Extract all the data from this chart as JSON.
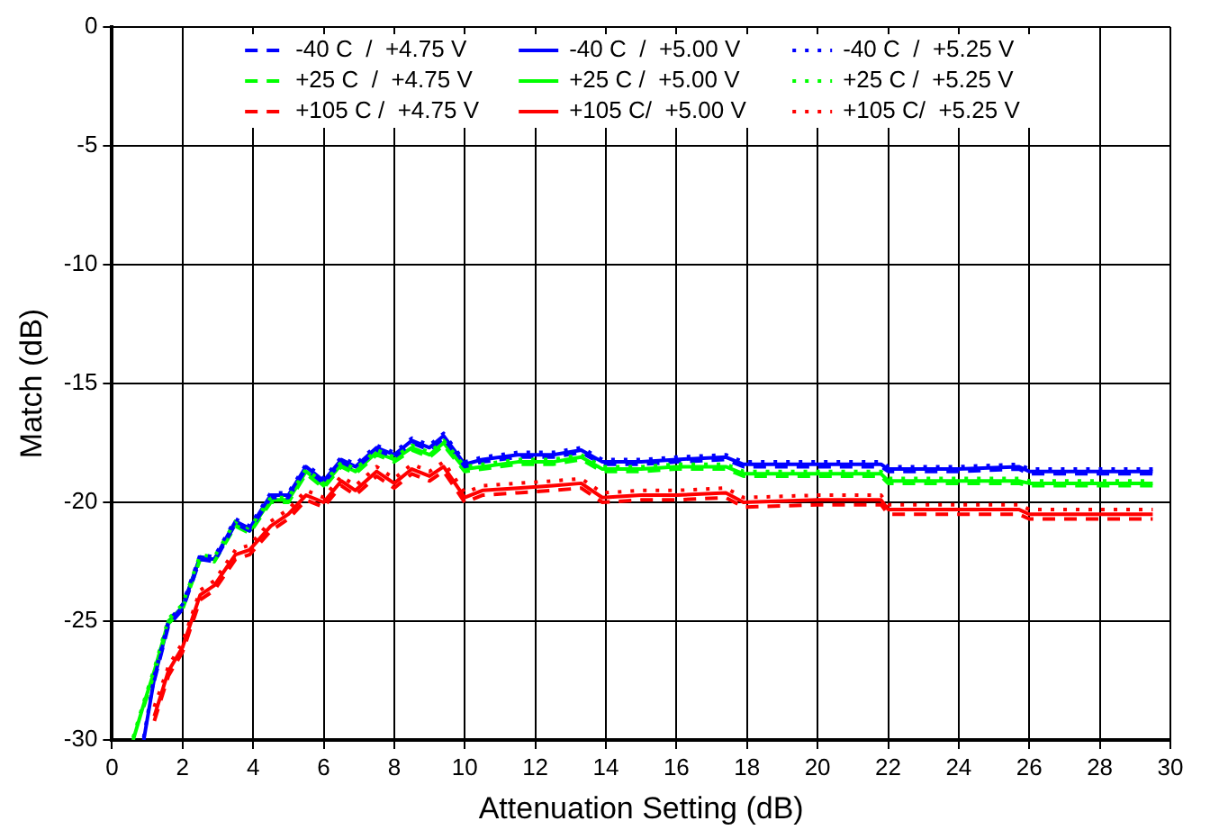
{
  "chart_data": {
    "type": "line",
    "xlabel": "Attenuation Setting (dB)",
    "ylabel": "Match (dB)",
    "x": [
      0.6,
      0.9,
      1.2,
      1.6,
      2.0,
      2.5,
      2.9,
      3.5,
      3.9,
      4.5,
      5.0,
      5.5,
      6.0,
      6.5,
      6.9,
      7.5,
      8.0,
      8.5,
      9.0,
      9.4,
      10.0,
      10.5,
      11.5,
      12.5,
      13.3,
      13.9,
      15,
      16,
      17.4,
      17.9,
      20,
      21.8,
      22.0,
      24,
      25.7,
      26.0,
      28,
      29.5
    ],
    "xlim": [
      0,
      30
    ],
    "xticks": [
      0,
      2,
      4,
      6,
      8,
      10,
      12,
      14,
      16,
      18,
      20,
      22,
      24,
      26,
      28,
      30
    ],
    "ylim": [
      -30,
      0
    ],
    "yticks": [
      -30,
      -25,
      -20,
      -15,
      -10,
      -5,
      0
    ],
    "grid": true,
    "legend": "top",
    "marker": "none",
    "series": [
      {
        "name": "-40 C  /  +4.75 V",
        "color": "#0000ff",
        "line_style": "dashed",
        "values": [
          null,
          null,
          -27.5,
          -25.2,
          -24.5,
          -22.4,
          -22.5,
          -20.9,
          -21.2,
          -19.8,
          -19.8,
          -18.6,
          -19.2,
          -18.3,
          -18.6,
          -17.8,
          -18.1,
          -17.5,
          -17.8,
          -17.3,
          -18.5,
          -18.3,
          -18.1,
          -18.1,
          -17.9,
          -18.4,
          -18.4,
          -18.3,
          -18.2,
          -18.5,
          -18.5,
          -18.5,
          -18.7,
          -18.7,
          -18.6,
          -18.8,
          -18.8,
          -18.8
        ]
      },
      {
        "name": "-40 C  /  +5.00 V",
        "color": "#0000ff",
        "line_style": "solid",
        "values": [
          null,
          -30,
          -27.4,
          -25.1,
          -24.4,
          -22.3,
          -22.4,
          -20.8,
          -21.1,
          -19.7,
          -19.7,
          -18.5,
          -19.1,
          -18.2,
          -18.5,
          -17.7,
          -18.0,
          -17.4,
          -17.7,
          -17.2,
          -18.4,
          -18.2,
          -18.0,
          -18.0,
          -17.8,
          -18.3,
          -18.3,
          -18.2,
          -18.1,
          -18.4,
          -18.4,
          -18.4,
          -18.6,
          -18.6,
          -18.5,
          -18.7,
          -18.7,
          -18.7
        ]
      },
      {
        "name": "-40 C  /  +5.25 V",
        "color": "#0000ff",
        "line_style": "dotted",
        "values": [
          null,
          -29.9,
          -27.3,
          -25.0,
          -24.3,
          -22.2,
          -22.3,
          -20.7,
          -21.0,
          -19.6,
          -19.6,
          -18.4,
          -19.0,
          -18.1,
          -18.4,
          -17.6,
          -17.9,
          -17.3,
          -17.6,
          -17.1,
          -18.3,
          -18.1,
          -17.9,
          -17.9,
          -17.7,
          -18.2,
          -18.2,
          -18.1,
          -18.0,
          -18.3,
          -18.3,
          -18.3,
          -18.5,
          -18.5,
          -18.4,
          -18.6,
          -18.6,
          -18.6
        ]
      },
      {
        "name": "+25 C  /  +4.75 V",
        "color": "#00ff00",
        "line_style": "dashed",
        "values": [
          null,
          -28.6,
          -27.2,
          -25.1,
          -24.5,
          -22.4,
          -22.5,
          -21.0,
          -21.3,
          -20.0,
          -20.0,
          -18.8,
          -19.4,
          -18.5,
          -18.8,
          -18.0,
          -18.3,
          -17.8,
          -18.1,
          -17.6,
          -18.7,
          -18.6,
          -18.4,
          -18.4,
          -18.2,
          -18.7,
          -18.7,
          -18.6,
          -18.6,
          -18.9,
          -18.9,
          -18.9,
          -19.2,
          -19.2,
          -19.2,
          -19.3,
          -19.3,
          -19.3
        ]
      },
      {
        "name": "+25 C /  +5.00 V",
        "color": "#00ff00",
        "line_style": "solid",
        "values": [
          -30,
          -28.5,
          -27.1,
          -25.0,
          -24.4,
          -22.3,
          -22.4,
          -20.9,
          -21.2,
          -19.9,
          -19.9,
          -18.7,
          -19.3,
          -18.4,
          -18.7,
          -17.9,
          -18.2,
          -17.7,
          -18.0,
          -17.5,
          -18.6,
          -18.5,
          -18.3,
          -18.3,
          -18.1,
          -18.6,
          -18.6,
          -18.5,
          -18.5,
          -18.8,
          -18.8,
          -18.8,
          -19.1,
          -19.1,
          -19.1,
          -19.2,
          -19.2,
          -19.2
        ]
      },
      {
        "name": "+25 C /  +5.25 V",
        "color": "#00ff00",
        "line_style": "dotted",
        "values": [
          -29.9,
          -28.4,
          -27.0,
          -24.9,
          -24.3,
          -22.2,
          -22.3,
          -20.8,
          -21.1,
          -19.8,
          -19.8,
          -18.6,
          -19.2,
          -18.3,
          -18.6,
          -17.8,
          -18.1,
          -17.6,
          -17.9,
          -17.4,
          -18.5,
          -18.4,
          -18.2,
          -18.2,
          -18.0,
          -18.5,
          -18.5,
          -18.4,
          -18.4,
          -18.7,
          -18.7,
          -18.7,
          -19.0,
          -19.0,
          -19.0,
          -19.1,
          -19.1,
          -19.1
        ]
      },
      {
        "name": "+105 C /  +4.75 V",
        "color": "#ff0000",
        "line_style": "dashed",
        "values": [
          null,
          null,
          -29.2,
          -27.3,
          -26.3,
          -24.1,
          -23.7,
          -22.4,
          -22.2,
          -21.2,
          -20.7,
          -19.9,
          -20.2,
          -19.3,
          -19.7,
          -18.9,
          -19.4,
          -18.8,
          -19.1,
          -18.7,
          -20.0,
          -19.7,
          -19.6,
          -19.5,
          -19.4,
          -20.0,
          -19.9,
          -19.9,
          -19.8,
          -20.2,
          -20.1,
          -20.1,
          -20.5,
          -20.5,
          -20.5,
          -20.7,
          -20.7,
          -20.7
        ]
      },
      {
        "name": "+105 C/  +5.00 V",
        "color": "#ff0000",
        "line_style": "solid",
        "values": [
          null,
          null,
          -29.0,
          -27.1,
          -26.1,
          -23.9,
          -23.5,
          -22.2,
          -22.0,
          -21.0,
          -20.5,
          -19.7,
          -20.0,
          -19.1,
          -19.5,
          -18.7,
          -19.2,
          -18.6,
          -18.9,
          -18.5,
          -19.8,
          -19.5,
          -19.4,
          -19.3,
          -19.2,
          -19.8,
          -19.7,
          -19.7,
          -19.6,
          -20.0,
          -19.9,
          -19.9,
          -20.3,
          -20.3,
          -20.3,
          -20.5,
          -20.5,
          -20.5
        ]
      },
      {
        "name": "+105 C/  +5.25 V",
        "color": "#ff0000",
        "line_style": "dotted",
        "values": [
          null,
          null,
          -28.6,
          -26.9,
          -25.9,
          -23.7,
          -23.3,
          -22.0,
          -21.8,
          -20.8,
          -20.3,
          -19.5,
          -19.8,
          -18.9,
          -19.3,
          -18.5,
          -19.0,
          -18.4,
          -18.7,
          -18.3,
          -19.6,
          -19.3,
          -19.2,
          -19.1,
          -19.0,
          -19.6,
          -19.5,
          -19.5,
          -19.4,
          -19.8,
          -19.7,
          -19.7,
          -20.1,
          -20.1,
          -20.1,
          -20.3,
          -20.3,
          -20.3
        ]
      }
    ]
  }
}
